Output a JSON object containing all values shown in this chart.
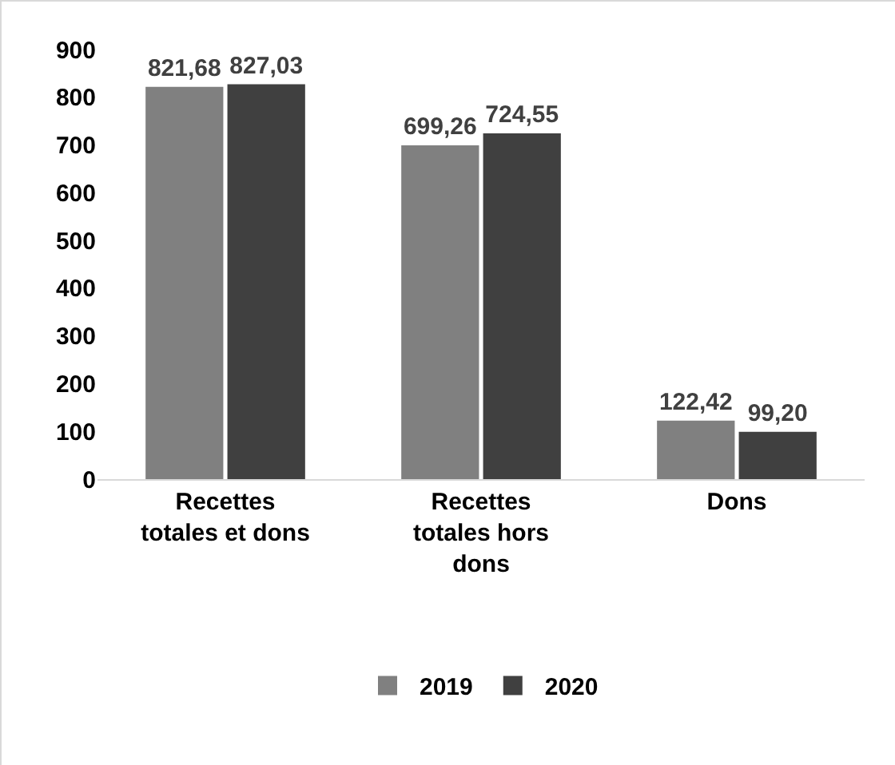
{
  "chart_data": {
    "type": "bar",
    "categories": [
      "Recettes totales et dons",
      "Recettes totales hors dons",
      "Dons"
    ],
    "series": [
      {
        "name": "2019",
        "color": "#808080",
        "values": [
          821.68,
          699.26,
          122.42
        ],
        "value_labels": [
          "821,68",
          "699,26",
          "122,42"
        ]
      },
      {
        "name": "2020",
        "color": "#404040",
        "values": [
          827.03,
          724.55,
          99.2
        ],
        "value_labels": [
          "827,03",
          "724,55",
          "99,20"
        ]
      }
    ],
    "ylim": [
      0,
      900
    ],
    "yticks": [
      0,
      100,
      200,
      300,
      400,
      500,
      600,
      700,
      800,
      900
    ],
    "grid": false,
    "legend": "bottom"
  }
}
